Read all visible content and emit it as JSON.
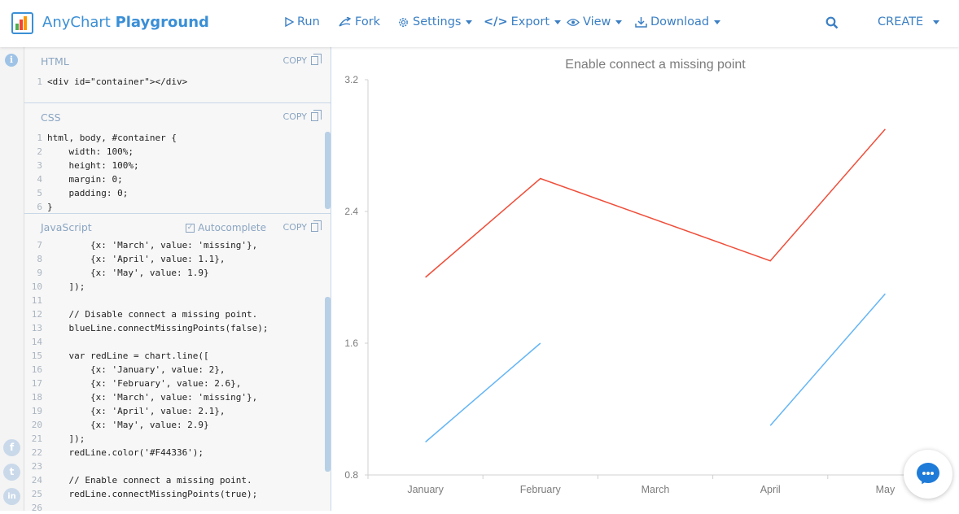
{
  "header": {
    "brand_light": "AnyChart ",
    "brand_bold": "Playground",
    "nav": {
      "run": "Run",
      "fork": "Fork",
      "settings": "Settings",
      "export": "Export",
      "view": "View",
      "download": "Download"
    },
    "create": "CREATE",
    "icons": [
      "play-icon",
      "fork-icon",
      "gear-icon",
      "code-icon",
      "eye-icon",
      "download-icon",
      "search-icon",
      "chevron-down-icon"
    ]
  },
  "editor": {
    "html": {
      "title": "HTML",
      "copy": "COPY",
      "lines": [
        {
          "n": "1",
          "t": "<div id=\"container\"></div>"
        }
      ]
    },
    "css": {
      "title": "CSS",
      "copy": "COPY",
      "lines": [
        {
          "n": "1",
          "t": "html, body, #container {"
        },
        {
          "n": "2",
          "t": "    width: 100%;"
        },
        {
          "n": "3",
          "t": "    height: 100%;"
        },
        {
          "n": "4",
          "t": "    margin: 0;"
        },
        {
          "n": "5",
          "t": "    padding: 0;"
        },
        {
          "n": "6",
          "t": "}"
        }
      ]
    },
    "js": {
      "title": "JavaScript",
      "autocomplete": "Autocomplete",
      "copy": "COPY",
      "lines": [
        {
          "n": "7",
          "t": "        {x: 'March', value: 'missing'},"
        },
        {
          "n": "8",
          "t": "        {x: 'April', value: 1.1},"
        },
        {
          "n": "9",
          "t": "        {x: 'May', value: 1.9}"
        },
        {
          "n": "10",
          "t": "    ]);"
        },
        {
          "n": "11",
          "t": ""
        },
        {
          "n": "12",
          "t": "    // Disable connect a missing point."
        },
        {
          "n": "13",
          "t": "    blueLine.connectMissingPoints(false);"
        },
        {
          "n": "14",
          "t": ""
        },
        {
          "n": "15",
          "t": "    var redLine = chart.line(["
        },
        {
          "n": "16",
          "t": "        {x: 'January', value: 2},"
        },
        {
          "n": "17",
          "t": "        {x: 'February', value: 2.6},"
        },
        {
          "n": "18",
          "t": "        {x: 'March', value: 'missing'},"
        },
        {
          "n": "19",
          "t": "        {x: 'April', value: 2.1},"
        },
        {
          "n": "20",
          "t": "        {x: 'May', value: 2.9}"
        },
        {
          "n": "21",
          "t": "    ]);"
        },
        {
          "n": "22",
          "t": "    redLine.color('#F44336');"
        },
        {
          "n": "23",
          "t": ""
        },
        {
          "n": "24",
          "t": "    // Enable connect a missing point."
        },
        {
          "n": "25",
          "t": "    redLine.connectMissingPoints(true);"
        },
        {
          "n": "26",
          "t": ""
        }
      ]
    }
  },
  "sidebar": {
    "info": "i",
    "social": [
      "f",
      "t",
      "in"
    ]
  },
  "chart_data": {
    "type": "line",
    "title": "Enable connect a missing point",
    "categories": [
      "January",
      "February",
      "March",
      "April",
      "May"
    ],
    "yticks": [
      "0.8",
      "1.6",
      "2.4",
      "3.2"
    ],
    "ylim": [
      0.8,
      3.2
    ],
    "series": [
      {
        "color": "#64b5f6",
        "values": [
          1.0,
          1.6,
          null,
          1.1,
          1.9
        ],
        "connect_missing": false
      },
      {
        "color": "#ef4e3a",
        "values": [
          2.0,
          2.6,
          null,
          2.1,
          2.9
        ],
        "connect_missing": true
      }
    ]
  }
}
